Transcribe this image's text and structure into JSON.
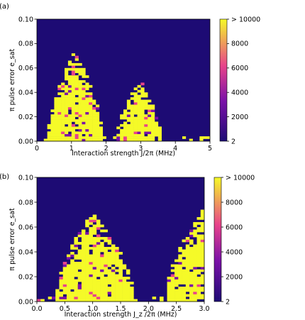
{
  "chart_data": [
    {
      "type": "heatmap",
      "panel_label": "(a)",
      "xlabel": "Interaction strength  J/2π (MHz)",
      "ylabel": "π pulse error e_sat",
      "xlim": [
        0,
        5
      ],
      "ylim": [
        0,
        0.1
      ],
      "x_ticks": [
        "0",
        "1",
        "2",
        "3",
        "4",
        "5"
      ],
      "x_tick_values": [
        0,
        1,
        2,
        3,
        4,
        5
      ],
      "y_ticks": [
        "0.00",
        "0.02",
        "0.04",
        "0.06",
        "0.08",
        "0.10"
      ],
      "y_tick_values": [
        0,
        0.02,
        0.04,
        0.06,
        0.08,
        0.1
      ],
      "grid": false,
      "cells_x": 50,
      "cells_y": 50,
      "lobes": [
        {
          "x_min": 0.3,
          "x_max": 1.9,
          "peak_x": 1.1,
          "peak_y": 0.074
        },
        {
          "x_min": 2.3,
          "x_max": 3.6,
          "peak_x": 3.0,
          "peak_y": 0.05
        }
      ],
      "colorbar": {
        "colors": [
          "#1d0b74",
          "#7b11a8",
          "#e8438a",
          "#f5fa28"
        ],
        "min": 2,
        "max": 10000,
        "ticks": [
          "2",
          "2000",
          "4000",
          "6000",
          "8000",
          "> 10000"
        ],
        "tick_values": [
          2,
          2000,
          4000,
          6000,
          8000,
          10000
        ]
      }
    },
    {
      "type": "heatmap",
      "panel_label": "(b)",
      "xlabel": "Interaction strength  J_z /2π (MHz)",
      "ylabel": "π pulse error e_sat",
      "xlim": [
        0,
        3
      ],
      "ylim": [
        0,
        0.1
      ],
      "x_ticks": [
        "0.0",
        "0.5",
        "1.0",
        "1.5",
        "2.0",
        "2.5",
        "3.0"
      ],
      "x_tick_values": [
        0,
        0.5,
        1,
        1.5,
        2,
        2.5,
        3
      ],
      "y_ticks": [
        "0.00",
        "0.02",
        "0.04",
        "0.06",
        "0.08",
        "0.10"
      ],
      "y_tick_values": [
        0,
        0.02,
        0.04,
        0.06,
        0.08,
        0.1
      ],
      "grid": false,
      "cells_x": 45,
      "cells_y": 50,
      "lobes": [
        {
          "x_min": 0.35,
          "x_max": 1.75,
          "peak_x": 1.0,
          "peak_y": 0.072
        },
        {
          "x_min": 2.3,
          "x_max": 3.0,
          "peak_x": 3.0,
          "peak_y": 0.075
        }
      ],
      "colorbar": {
        "colors": [
          "#1d0b74",
          "#7b11a8",
          "#e8438a",
          "#f5fa28"
        ],
        "min": 2,
        "max": 10000,
        "ticks": [
          "2",
          "2000",
          "4000",
          "6000",
          "8000",
          "> 10000"
        ],
        "tick_values": [
          2,
          2000,
          4000,
          6000,
          8000,
          10000
        ]
      }
    }
  ]
}
